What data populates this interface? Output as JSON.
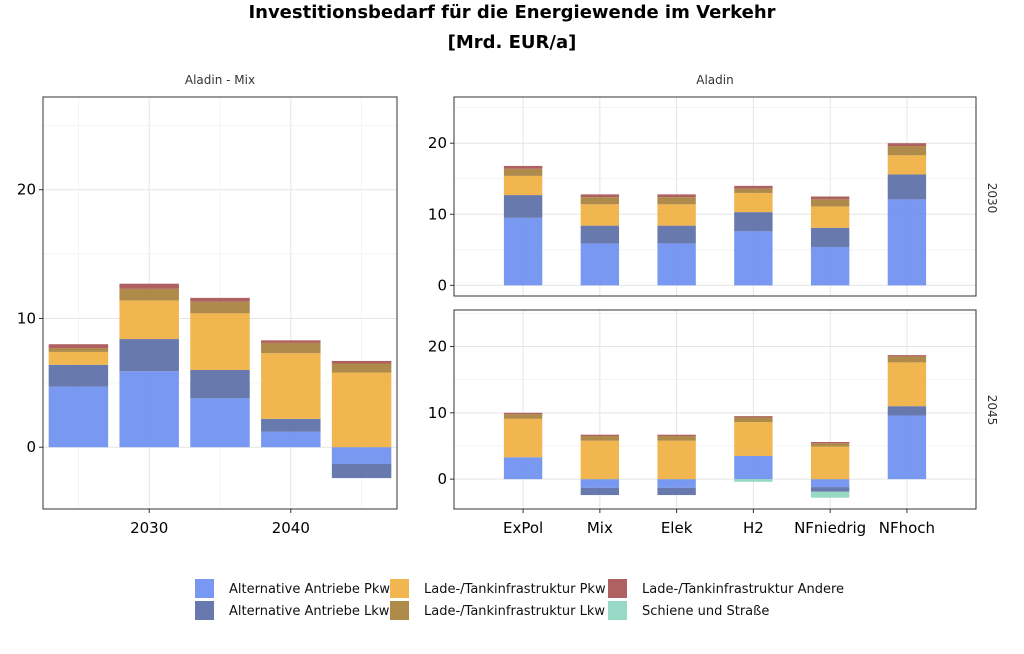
{
  "chart_data": {
    "type": "bar",
    "stacked": true,
    "title": "Investitionsbedarf für die Energiewende im Verkehr",
    "subtitle": "[Mrd. EUR/a]",
    "grid": true,
    "legend_position": "bottom",
    "series_meta": [
      {
        "name": "Alternative Antriebe Pkw",
        "color": "#6d8ff0"
      },
      {
        "name": "Alternative Antriebe Lkw",
        "color": "#5a6ea6"
      },
      {
        "name": "Lade-/Tankinfrastruktur Pkw",
        "color": "#f0b040"
      },
      {
        "name": "Lade-/Tankinfrastruktur Lkw",
        "color": "#a8813c"
      },
      {
        "name": "Lade-/Tankinfrastruktur Andere",
        "color": "#a85353"
      },
      {
        "name": "Schiene und Straße",
        "color": "#8fd6c0"
      }
    ],
    "panels": [
      {
        "id": "left",
        "strip": "Aladin - Mix",
        "x_type": "numeric",
        "xlim": [
          2022.5,
          2047.5
        ],
        "x_ticks": [
          2030,
          2040
        ],
        "ylim": [
          -4.8,
          27.2
        ],
        "y_ticks": [
          0,
          10,
          20
        ],
        "bars": [
          {
            "x": 2025,
            "values": [
              4.7,
              1.7,
              1.0,
              0.3,
              0.3,
              0.0
            ]
          },
          {
            "x": 2030,
            "values": [
              5.9,
              2.5,
              3.0,
              0.9,
              0.4,
              0.0
            ]
          },
          {
            "x": 2035,
            "values": [
              3.8,
              2.2,
              4.4,
              0.9,
              0.3,
              0.0
            ]
          },
          {
            "x": 2040,
            "values": [
              1.2,
              1.0,
              5.1,
              0.8,
              0.2,
              0.0
            ]
          },
          {
            "x": 2045,
            "values": [
              -1.3,
              -1.1,
              5.8,
              0.7,
              0.2,
              0.0
            ]
          }
        ]
      },
      {
        "id": "right-2030",
        "row_label": "2030",
        "strip": "Aladin",
        "x_type": "categorical",
        "ylim": [
          -1.5,
          26.5
        ],
        "y_ticks": [
          0,
          10,
          20
        ],
        "categories": [
          "ExPol",
          "Mix",
          "Elek",
          "H2",
          "NFniedrig",
          "NFhoch"
        ],
        "bars": [
          {
            "x": "ExPol",
            "values": [
              9.5,
              3.2,
              2.7,
              1.0,
              0.4,
              0.0
            ]
          },
          {
            "x": "Mix",
            "values": [
              5.9,
              2.5,
              3.0,
              1.0,
              0.4,
              0.0
            ]
          },
          {
            "x": "Elek",
            "values": [
              5.9,
              2.5,
              3.0,
              1.0,
              0.4,
              0.0
            ]
          },
          {
            "x": "H2",
            "values": [
              7.6,
              2.7,
              2.7,
              0.6,
              0.4,
              0.0
            ]
          },
          {
            "x": "NFniedrig",
            "values": [
              5.4,
              2.7,
              3.0,
              1.0,
              0.4,
              0.0
            ]
          },
          {
            "x": "NFhoch",
            "values": [
              12.1,
              3.5,
              2.7,
              1.3,
              0.4,
              0.0
            ]
          }
        ]
      },
      {
        "id": "right-2045",
        "row_label": "2045",
        "strip": "",
        "x_type": "categorical",
        "ylim": [
          -4.5,
          25.5
        ],
        "y_ticks": [
          0,
          10,
          20
        ],
        "categories": [
          "ExPol",
          "Mix",
          "Elek",
          "H2",
          "NFniedrig",
          "NFhoch"
        ],
        "bars": [
          {
            "x": "ExPol",
            "values": [
              3.3,
              0.0,
              5.8,
              0.7,
              0.2,
              0.0
            ]
          },
          {
            "x": "Mix",
            "values": [
              -1.3,
              -1.1,
              5.8,
              0.7,
              0.2,
              0.0
            ]
          },
          {
            "x": "Elek",
            "values": [
              -1.3,
              -1.1,
              5.8,
              0.7,
              0.2,
              0.0
            ]
          },
          {
            "x": "H2",
            "values": [
              3.5,
              0.0,
              5.1,
              0.7,
              0.2,
              -0.4
            ]
          },
          {
            "x": "NFniedrig",
            "values": [
              -1.2,
              -0.7,
              4.9,
              0.5,
              0.2,
              -0.9
            ]
          },
          {
            "x": "NFhoch",
            "values": [
              9.6,
              1.4,
              6.6,
              0.9,
              0.2,
              0.0
            ]
          }
        ]
      }
    ]
  }
}
